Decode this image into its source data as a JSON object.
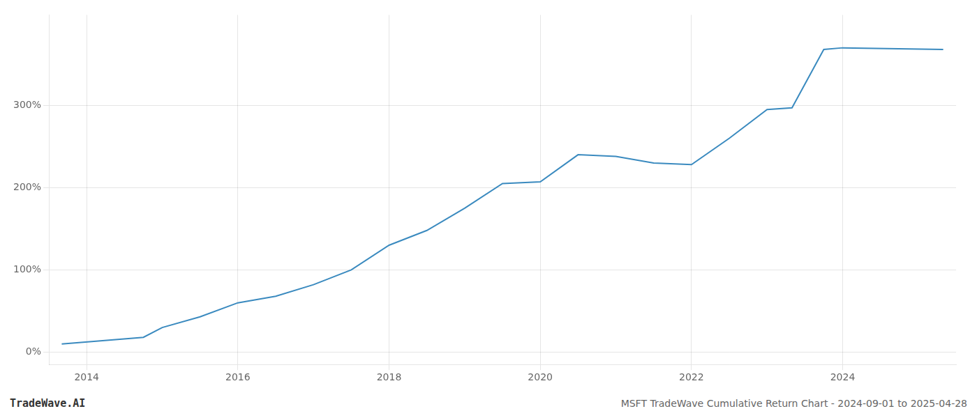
{
  "chart_data": {
    "type": "line",
    "title": "MSFT TradeWave Cumulative Return Chart - 2024-09-01 to 2025-04-28",
    "annotations": [
      "TradeWave.AI"
    ],
    "x": [
      2013.67,
      2014.75,
      2015.0,
      2015.5,
      2016.0,
      2016.5,
      2017.0,
      2017.5,
      2018.0,
      2018.5,
      2019.0,
      2019.5,
      2020.0,
      2020.5,
      2021.0,
      2021.5,
      2022.0,
      2022.5,
      2023.0,
      2023.33,
      2023.75,
      2024.0,
      2025.33
    ],
    "values": [
      10,
      18,
      30,
      43,
      60,
      68,
      82,
      100,
      130,
      148,
      175,
      205,
      207,
      240,
      238,
      230,
      228,
      260,
      295,
      297,
      368,
      370,
      368
    ],
    "color": "#3a8abf",
    "xlim": [
      2013.5,
      2025.5
    ],
    "xticks": [
      2014,
      2016,
      2018,
      2020,
      2022,
      2024
    ],
    "ylim": [
      -15,
      410
    ],
    "yticks": [
      {
        "value": 0,
        "label": "0%"
      },
      {
        "value": 100,
        "label": "100%"
      },
      {
        "value": 200,
        "label": "200%"
      },
      {
        "value": 300,
        "label": "300%"
      }
    ],
    "grid": true
  }
}
